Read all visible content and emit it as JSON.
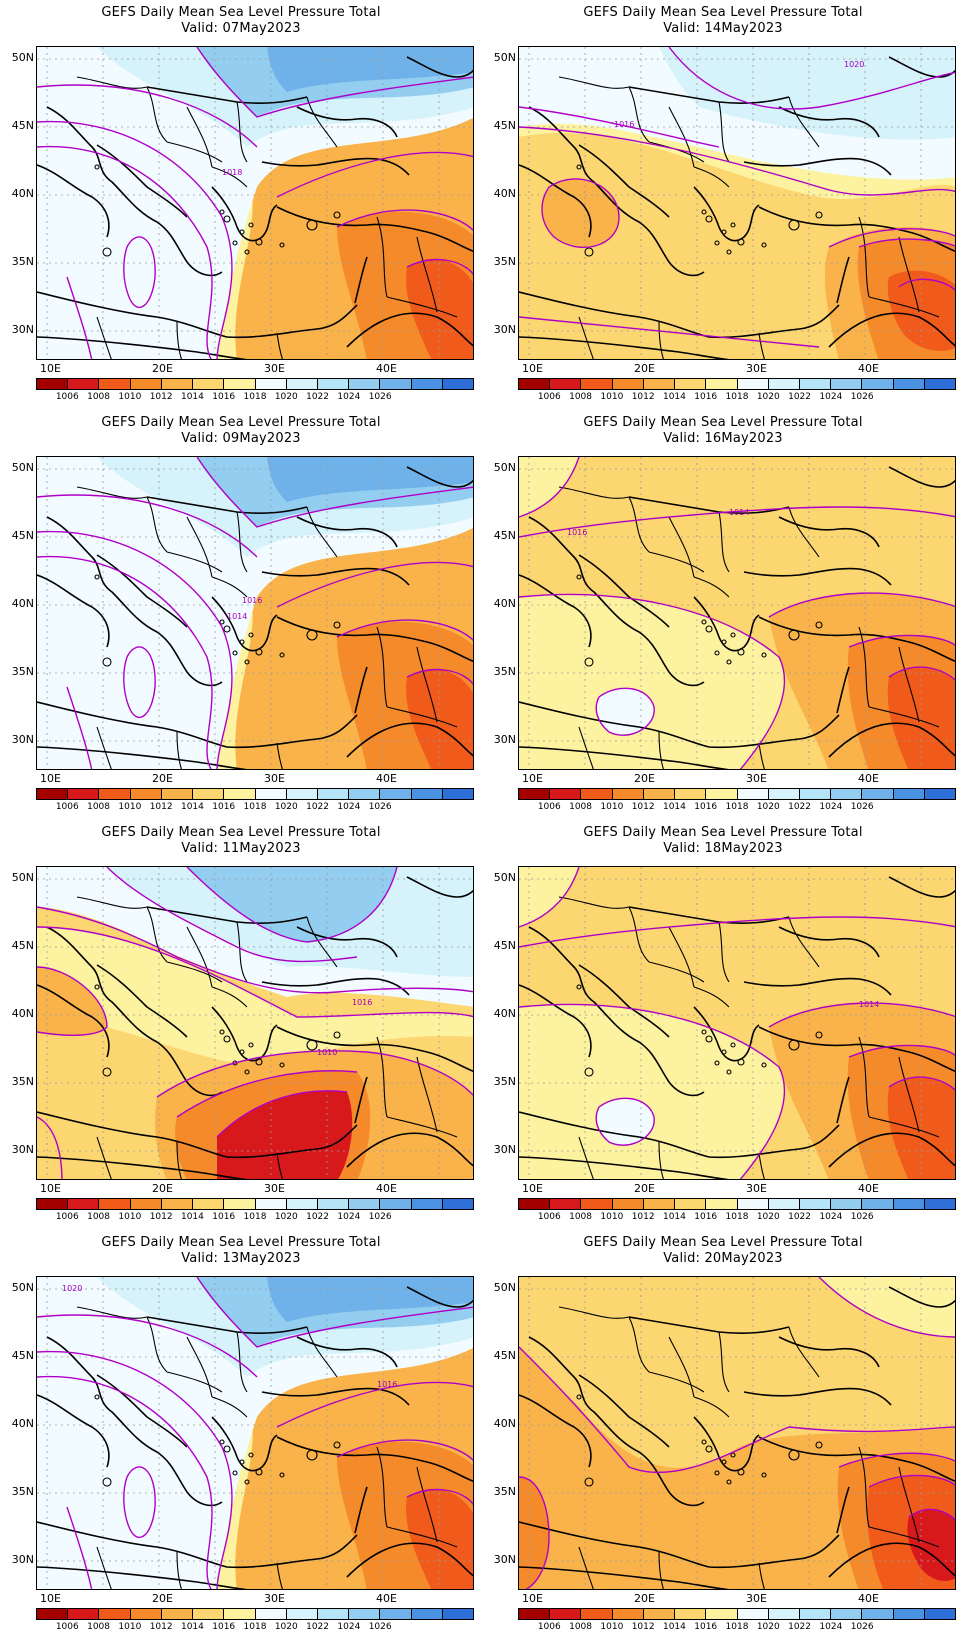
{
  "colorbar": {
    "colors": [
      "#a50000",
      "#d7191c",
      "#f05a1a",
      "#f58a2a",
      "#f9b34a",
      "#fcd670",
      "#fdf2a0",
      "#f2fbff",
      "#d6f2fb",
      "#b4e4f5",
      "#93cdf0",
      "#6fb2ea",
      "#4c92e2",
      "#2f6fd8"
    ],
    "labels": [
      "1006",
      "1008",
      "1010",
      "1012",
      "1014",
      "1016",
      "1018",
      "1020",
      "1022",
      "1024",
      "1026"
    ]
  },
  "lat_labels": [
    "50N",
    "45N",
    "40N",
    "35N",
    "30N"
  ],
  "lon_labels": [
    "10E",
    "20E",
    "30E",
    "40E"
  ],
  "panels": [
    {
      "title": "GEFS Daily Mean Sea Level Pressure Total",
      "valid": "Valid: 07May2023",
      "contour_label": "1018",
      "regime": "blue-north"
    },
    {
      "title": "GEFS Daily Mean Sea Level Pressure Total",
      "valid": "Valid: 14May2023",
      "contour_label": "1016",
      "contour_label2": "1020",
      "regime": "light-north"
    },
    {
      "title": "GEFS Daily Mean Sea Level Pressure Total",
      "valid": "Valid: 09May2023",
      "contour_label": "1016",
      "contour_label2": "1014",
      "regime": "blue-north"
    },
    {
      "title": "GEFS Daily Mean Sea Level Pressure Total",
      "valid": "Valid: 16May2023",
      "contour_label": "1014",
      "contour_label2": "1016",
      "regime": "yellow"
    },
    {
      "title": "GEFS Daily Mean Sea Level Pressure Total",
      "valid": "Valid: 11May2023",
      "contour_label": "1016",
      "contour_label2": "1010",
      "regime": "blue-north-red-south"
    },
    {
      "title": "GEFS Daily Mean Sea Level Pressure Total",
      "valid": "Valid: 18May2023",
      "contour_label": "1014",
      "regime": "yellow"
    },
    {
      "title": "GEFS Daily Mean Sea Level Pressure Total",
      "valid": "Valid: 13May2023",
      "contour_label": "1020",
      "contour_label2": "1016",
      "regime": "blue-north"
    },
    {
      "title": "GEFS Daily Mean Sea Level Pressure Total",
      "valid": "Valid: 20May2023",
      "regime": "orange"
    }
  ]
}
